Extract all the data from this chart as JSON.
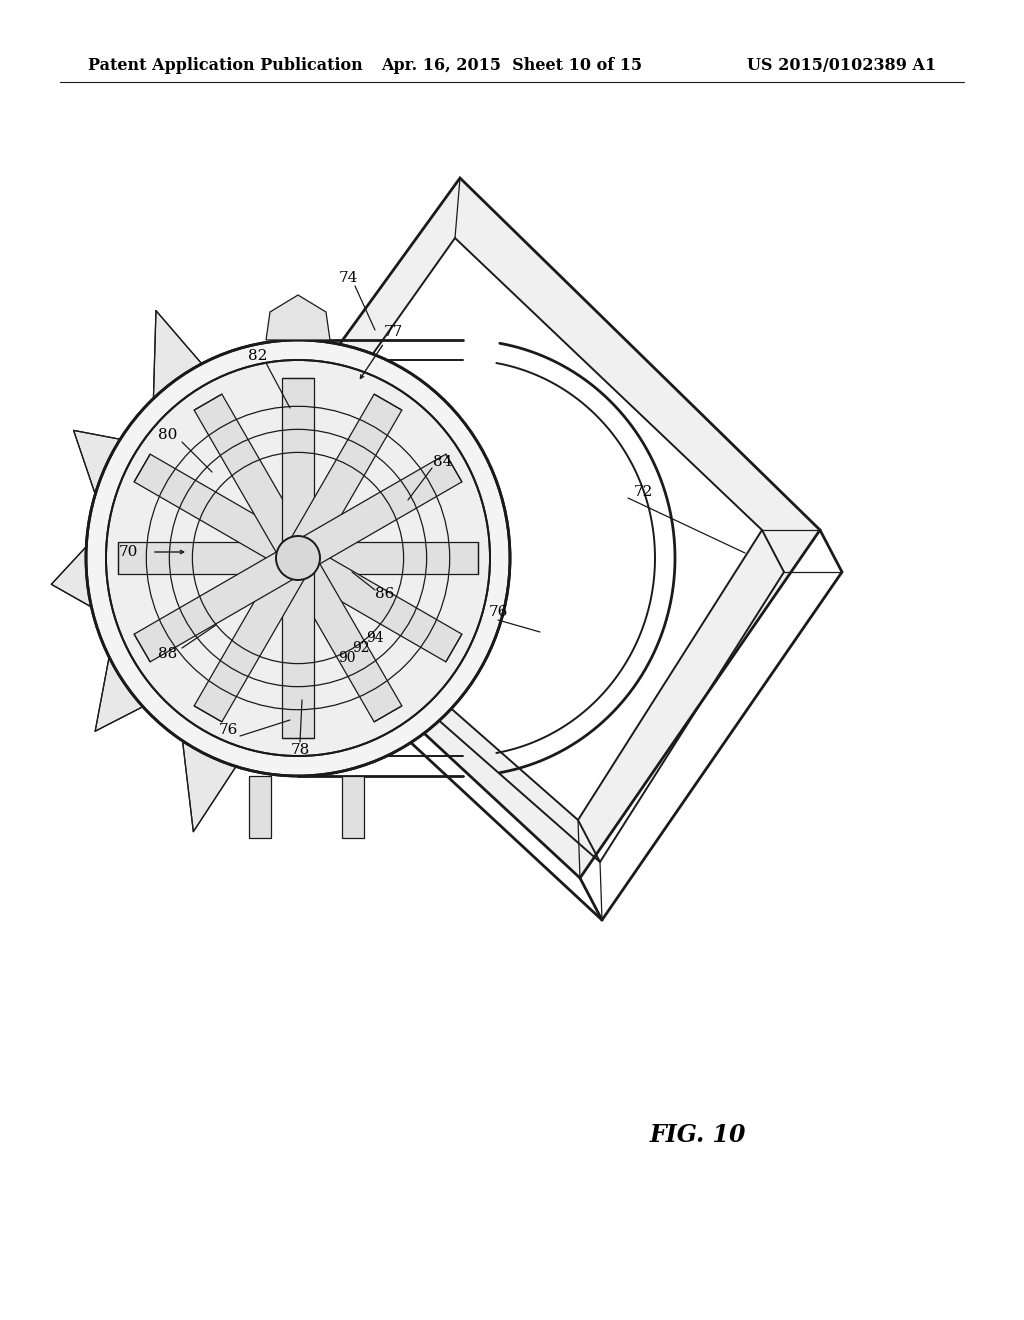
{
  "bg_color": "#ffffff",
  "line_color": "#1a1a1a",
  "header_left": "Patent Application Publication",
  "header_mid": "Apr. 16, 2015  Sheet 10 of 15",
  "header_right": "US 2015/0102389 A1",
  "fig_label": "FIG. 10",
  "label_fontsize": 11,
  "title_fontsize": 11.5
}
